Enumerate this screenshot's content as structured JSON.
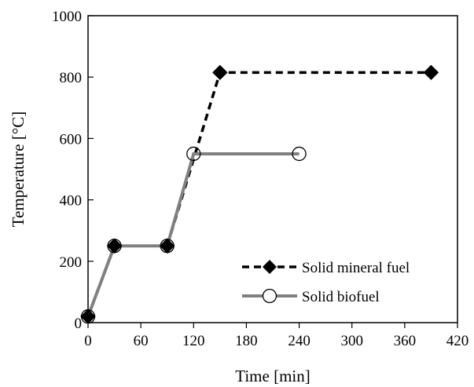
{
  "chart_data": {
    "type": "line",
    "title": "",
    "xlabel": "Time [min]",
    "ylabel": "Temperature [°C]",
    "xlim": [
      0,
      420
    ],
    "ylim": [
      0,
      1000
    ],
    "xticks": [
      0,
      60,
      120,
      180,
      240,
      300,
      360,
      420
    ],
    "yticks": [
      0,
      200,
      400,
      600,
      800,
      1000
    ],
    "grid": false,
    "legend_position": "bottom-right",
    "series": [
      {
        "name": "Solid mineral fuel",
        "color": "#000000",
        "line_style": "dashed",
        "marker": "filled-diamond",
        "x": [
          0,
          30,
          90,
          150,
          390
        ],
        "y": [
          20,
          250,
          250,
          815,
          815
        ]
      },
      {
        "name": "Solid biofuel",
        "color": "#808080",
        "line_style": "solid",
        "marker": "open-circle",
        "x": [
          0,
          30,
          90,
          120,
          240
        ],
        "y": [
          20,
          250,
          250,
          550,
          550
        ]
      }
    ]
  }
}
